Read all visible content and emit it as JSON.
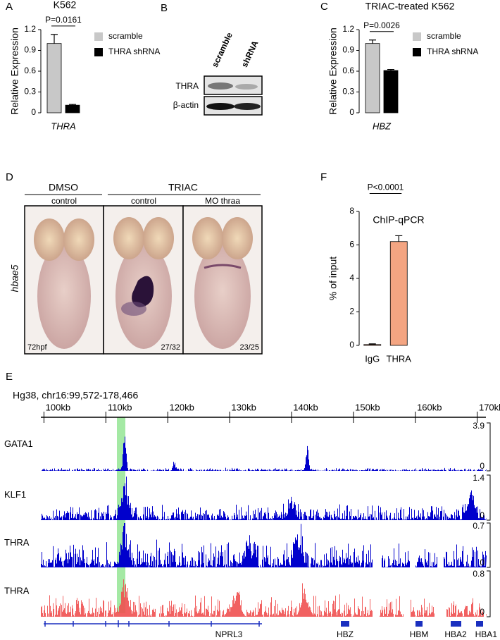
{
  "chart_data": [
    {
      "type": "bar",
      "panel": "A",
      "title": "K562",
      "ylabel": "Relative Expression",
      "categories": [
        "THRA"
      ],
      "series": [
        {
          "name": "scramble",
          "color": "#c8c8c8",
          "values": [
            1.0
          ],
          "errors": [
            0.13
          ]
        },
        {
          "name": "THRA shRNA",
          "color": "#000000",
          "values": [
            0.11
          ],
          "errors": [
            0.01
          ]
        }
      ],
      "ylim": [
        0,
        1.2
      ],
      "yticks": [
        0,
        0.3,
        0.6,
        0.9,
        1.2
      ],
      "annotation": "P=0.0161",
      "legend": "right"
    },
    {
      "type": "bar",
      "panel": "C",
      "title": "TRIAC-treated K562",
      "ylabel": "Relative Expression",
      "categories": [
        "HBZ"
      ],
      "series": [
        {
          "name": "scramble",
          "color": "#c8c8c8",
          "values": [
            1.0
          ],
          "errors": [
            0.05
          ]
        },
        {
          "name": "THRA shRNA",
          "color": "#000000",
          "values": [
            0.61
          ],
          "errors": [
            0.015
          ]
        }
      ],
      "ylim": [
        0,
        1.2
      ],
      "yticks": [
        0,
        0.3,
        0.6,
        0.9,
        1.2
      ],
      "annotation": "P=0.0026",
      "legend": "right"
    },
    {
      "type": "bar",
      "panel": "F",
      "title": "ChIP-qPCR",
      "ylabel": "% of input",
      "categories": [
        "IgG",
        "THRA"
      ],
      "values": [
        0.05,
        6.2
      ],
      "errors": [
        0.04,
        0.35
      ],
      "color": "#f4a582",
      "ylim": [
        0,
        8
      ],
      "yticks": [
        0,
        2,
        4,
        6,
        8
      ],
      "annotation": "P<0.0001"
    }
  ],
  "western_blot": {
    "panel": "B",
    "columns": [
      "scramble",
      "shRNA"
    ],
    "rows": [
      "THRA",
      "β-actin"
    ]
  },
  "in_situ": {
    "panel": "D",
    "groups": [
      {
        "label": "DMSO",
        "conditions": [
          "control"
        ]
      },
      {
        "label": "TRIAC",
        "conditions": [
          "control",
          "MO thraa"
        ]
      }
    ],
    "gene": "hbae5",
    "counts": [
      "72hpf",
      "27/32",
      "23/25"
    ]
  },
  "genome_browser": {
    "panel": "E",
    "locus": "Hg38, chr16:99,572-178,466",
    "xlim": [
      99.5,
      171.4
    ],
    "xticks": [
      {
        "value": 100,
        "label": "100kb"
      },
      {
        "value": 110,
        "label": "110kb"
      },
      {
        "value": 120,
        "label": "120kb"
      },
      {
        "value": 130,
        "label": "130kb"
      },
      {
        "value": 140,
        "label": "140kb"
      },
      {
        "value": 150,
        "label": "150kb"
      },
      {
        "value": 160,
        "label": "160kb"
      },
      {
        "value": 170,
        "label": "170kb"
      }
    ],
    "tracks": [
      {
        "name": "GATA1",
        "color": "#0000cc",
        "ylim": [
          0,
          3.9
        ]
      },
      {
        "name": "KLF1",
        "color": "#0000cc",
        "ylim": [
          0,
          1.4
        ]
      },
      {
        "name": "THRA",
        "color": "#0000cc",
        "ylim": [
          0,
          0.7
        ]
      },
      {
        "name": "THRA",
        "color": "#f05050",
        "ylim": [
          0,
          0.8
        ]
      }
    ],
    "genes": [
      "NPRL3",
      "HBZ",
      "HBM",
      "HBA2",
      "HBA1"
    ]
  }
}
